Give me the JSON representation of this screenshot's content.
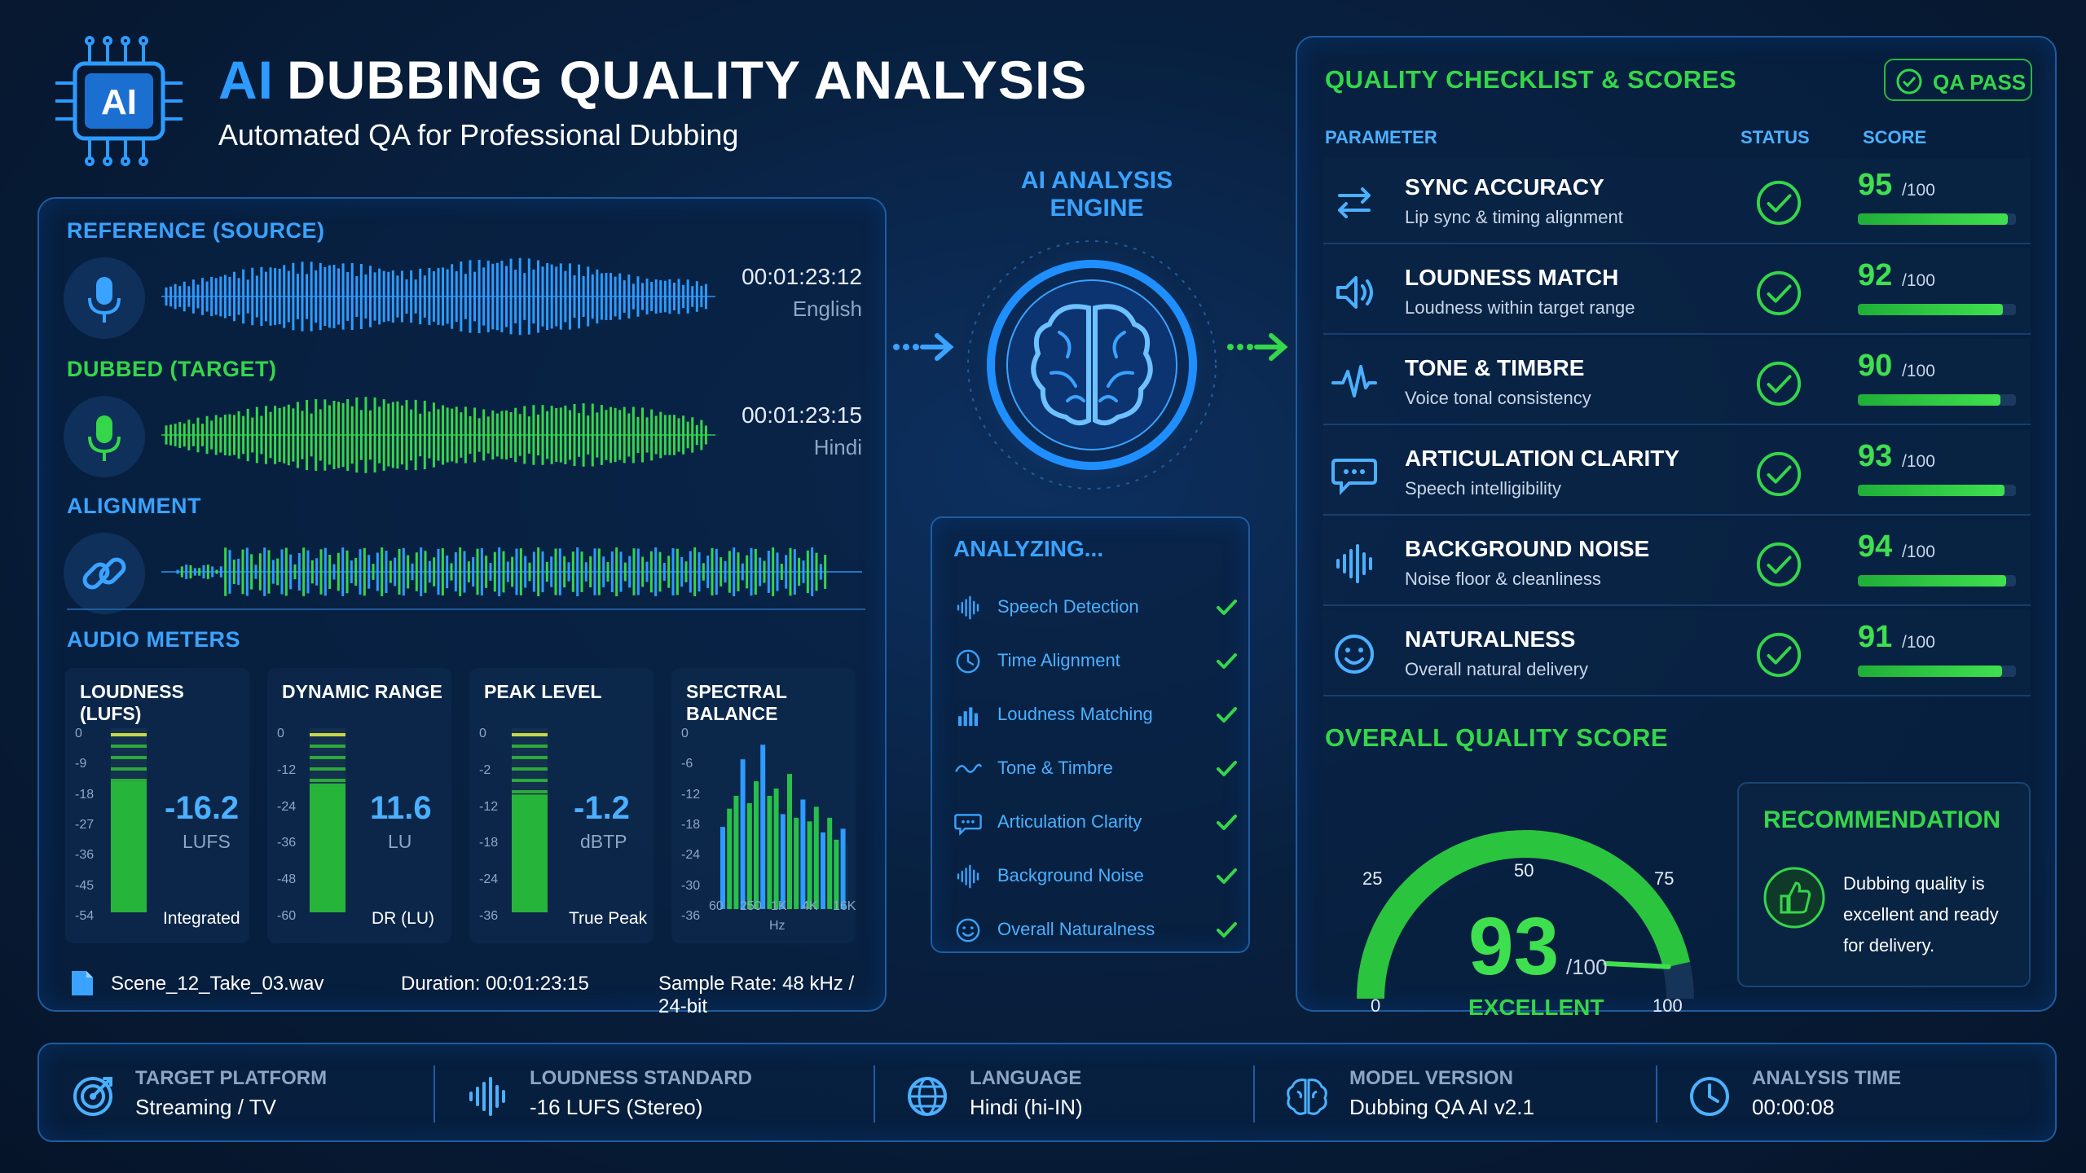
{
  "header": {
    "ai_word": "AI",
    "title_rest": "DUBBING QUALITY ANALYSIS",
    "subtitle": "Automated QA for Professional Dubbing",
    "logo_text": "AI"
  },
  "reference": {
    "label": "REFERENCE (SOURCE)",
    "timecode": "00:01:23:12",
    "language": "English"
  },
  "dubbed": {
    "label": "DUBBED (TARGET)",
    "timecode": "00:01:23:15",
    "language": "Hindi"
  },
  "alignment": {
    "label": "ALIGNMENT"
  },
  "audio_meters": {
    "label": "AUDIO METERS",
    "loudness": {
      "title": "LOUDNESS (LUFS)",
      "scale": [
        "0",
        "-9",
        "-18",
        "-27",
        "-36",
        "-45",
        "-54"
      ],
      "value": "-16.2",
      "unit": "LUFS",
      "footer": "Integrated",
      "level": 0.72
    },
    "dynamic_range": {
      "title": "DYNAMIC RANGE",
      "scale": [
        "0",
        "-12",
        "-24",
        "-36",
        "-48",
        "-60"
      ],
      "value": "11.6",
      "unit": "LU",
      "footer": "DR (LU)",
      "level": 0.7
    },
    "peak": {
      "title": "PEAK LEVEL",
      "scale": [
        "0",
        "-2",
        "-12",
        "-18",
        "-24",
        "-36"
      ],
      "value": "-1.2",
      "unit": "dBTP",
      "footer": "True Peak",
      "level": 0.64
    },
    "spectral": {
      "title": "SPECTRAL BALANCE",
      "scale": [
        "0",
        "-6",
        "-12",
        "-18",
        "-24",
        "-30",
        "-36"
      ],
      "x_ticks": [
        "60",
        "250",
        "1K",
        "4K",
        "16K"
      ],
      "x_unit": "Hz"
    }
  },
  "file_info": {
    "filename": "Scene_12_Take_03.wav",
    "duration": "Duration: 00:01:23:15",
    "sample_rate": "Sample Rate: 48 kHz / 24-bit"
  },
  "engine": {
    "title": "AI ANALYSIS ENGINE",
    "analyzing_title": "ANALYZING...",
    "steps": [
      {
        "label": "Speech Detection",
        "icon": "waveform-icon"
      },
      {
        "label": "Time Alignment",
        "icon": "clock-icon"
      },
      {
        "label": "Loudness Matching",
        "icon": "bars-icon"
      },
      {
        "label": "Tone & Timbre",
        "icon": "wave-icon"
      },
      {
        "label": "Articulation Clarity",
        "icon": "chat-icon"
      },
      {
        "label": "Background Noise",
        "icon": "waveform-icon"
      },
      {
        "label": "Overall Naturalness",
        "icon": "smile-icon"
      }
    ]
  },
  "checklist": {
    "title": "QUALITY CHECKLIST & SCORES",
    "qa_badge": "QA PASS",
    "col_parameter": "PARAMETER",
    "col_status": "STATUS",
    "col_score": "SCORE",
    "items": [
      {
        "name": "SYNC ACCURACY",
        "desc": "Lip sync & timing alignment",
        "score": "95",
        "max": "/100",
        "value": 95,
        "icon": "sync-arrows-icon"
      },
      {
        "name": "LOUDNESS MATCH",
        "desc": "Loudness within target range",
        "score": "92",
        "max": "/100",
        "value": 92,
        "icon": "speaker-icon"
      },
      {
        "name": "TONE & TIMBRE",
        "desc": "Voice tonal consistency",
        "score": "90",
        "max": "/100",
        "value": 90,
        "icon": "pulse-icon"
      },
      {
        "name": "ARTICULATION CLARITY",
        "desc": "Speech intelligibility",
        "score": "93",
        "max": "/100",
        "value": 93,
        "icon": "chat-icon"
      },
      {
        "name": "BACKGROUND NOISE",
        "desc": "Noise floor & cleanliness",
        "score": "94",
        "max": "/100",
        "value": 94,
        "icon": "waveform-icon"
      },
      {
        "name": "NATURALNESS",
        "desc": "Overall natural delivery",
        "score": "91",
        "max": "/100",
        "value": 91,
        "icon": "smile-icon"
      }
    ]
  },
  "overall": {
    "title": "OVERALL QUALITY SCORE",
    "score": "93",
    "max": "/100",
    "value": 93,
    "rating": "EXCELLENT",
    "ticks": [
      "0",
      "25",
      "50",
      "75",
      "100"
    ]
  },
  "recommendation": {
    "title": "RECOMMENDATION",
    "line1": "Dubbing quality is",
    "line2": "excellent and ready",
    "line3": "for delivery."
  },
  "bottom": [
    {
      "label": "TARGET PLATFORM",
      "value": "Streaming / TV",
      "icon": "target-icon"
    },
    {
      "label": "LOUDNESS STANDARD",
      "value": "-16 LUFS (Stereo)",
      "icon": "waveform-icon"
    },
    {
      "label": "LANGUAGE",
      "value": "Hindi (hi-IN)",
      "icon": "globe-icon"
    },
    {
      "label": "MODEL VERSION",
      "value": "Dubbing QA AI v2.1",
      "icon": "brain-icon"
    },
    {
      "label": "ANALYSIS TIME",
      "value": "00:00:08",
      "icon": "clock-icon"
    }
  ],
  "colors": {
    "accent_blue": "#2d9bff",
    "accent_green": "#35d64a",
    "background": "#08203f",
    "panel_border": "#1f5c9e"
  }
}
